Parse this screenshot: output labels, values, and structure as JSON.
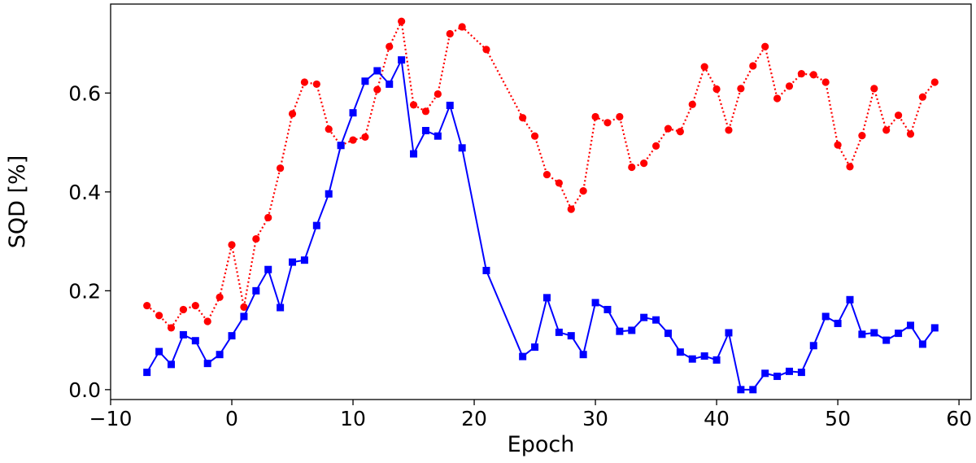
{
  "chart_data": {
    "type": "line",
    "xlabel": "Epoch",
    "ylabel": "SQD [%]",
    "xlim": [
      -10,
      61
    ],
    "ylim": [
      -0.02,
      0.78
    ],
    "xticks": [
      -10,
      0,
      10,
      20,
      30,
      40,
      50,
      60
    ],
    "xtick_labels": [
      "−10",
      "0",
      "10",
      "20",
      "30",
      "40",
      "50",
      "60"
    ],
    "yticks": [
      0.0,
      0.2,
      0.4,
      0.6
    ],
    "ytick_labels": [
      "0.0",
      "0.2",
      "0.4",
      "0.6"
    ],
    "grid": false,
    "series": [
      {
        "color": "#ff0000",
        "line_style": "dotted",
        "marker": "circle",
        "x": [
          -7,
          -6,
          -5,
          -4,
          -3,
          -2,
          -1,
          0,
          1,
          2,
          3,
          4,
          5,
          6,
          7,
          8,
          9,
          10,
          11,
          12,
          13,
          14,
          15,
          16,
          17,
          18,
          19,
          21,
          24,
          25,
          26,
          27,
          28,
          29,
          30,
          31,
          32,
          33,
          34,
          35,
          36,
          37,
          38,
          39,
          40,
          41,
          42,
          43,
          44,
          45,
          46,
          47,
          48,
          49,
          50,
          51,
          52,
          53,
          54,
          55,
          56,
          57,
          58
        ],
        "y": [
          0.17,
          0.15,
          0.125,
          0.162,
          0.17,
          0.138,
          0.187,
          0.293,
          0.167,
          0.305,
          0.348,
          0.448,
          0.558,
          0.622,
          0.618,
          0.527,
          0.494,
          0.505,
          0.511,
          0.607,
          0.694,
          0.745,
          0.576,
          0.563,
          0.598,
          0.72,
          0.734,
          0.688,
          0.55,
          0.513,
          0.435,
          0.418,
          0.365,
          0.402,
          0.552,
          0.54,
          0.552,
          0.45,
          0.458,
          0.493,
          0.528,
          0.522,
          0.577,
          0.653,
          0.608,
          0.525,
          0.609,
          0.655,
          0.694,
          0.589,
          0.614,
          0.639,
          0.637,
          0.622,
          0.495,
          0.451,
          0.514,
          0.609,
          0.525,
          0.555,
          0.517,
          0.592,
          0.622
        ]
      },
      {
        "color": "#0000ff",
        "line_style": "solid",
        "marker": "square",
        "x": [
          -7,
          -6,
          -5,
          -4,
          -3,
          -2,
          -1,
          0,
          1,
          2,
          3,
          4,
          5,
          6,
          7,
          8,
          9,
          10,
          11,
          12,
          13,
          14,
          15,
          16,
          17,
          18,
          19,
          21,
          24,
          25,
          26,
          27,
          28,
          29,
          30,
          31,
          32,
          33,
          34,
          35,
          36,
          37,
          38,
          39,
          40,
          41,
          42,
          43,
          44,
          45,
          46,
          47,
          48,
          49,
          50,
          51,
          52,
          53,
          54,
          55,
          56,
          57,
          58
        ],
        "y": [
          0.035,
          0.077,
          0.051,
          0.111,
          0.099,
          0.053,
          0.071,
          0.109,
          0.148,
          0.2,
          0.243,
          0.166,
          0.258,
          0.262,
          0.332,
          0.396,
          0.494,
          0.56,
          0.624,
          0.645,
          0.618,
          0.667,
          0.477,
          0.524,
          0.513,
          0.575,
          0.489,
          0.241,
          0.067,
          0.086,
          0.186,
          0.116,
          0.109,
          0.071,
          0.176,
          0.162,
          0.118,
          0.12,
          0.146,
          0.141,
          0.114,
          0.076,
          0.062,
          0.068,
          0.06,
          0.115,
          0.0,
          0.0,
          0.033,
          0.027,
          0.037,
          0.035,
          0.089,
          0.148,
          0.134,
          0.182,
          0.112,
          0.115,
          0.1,
          0.114,
          0.13,
          0.092,
          0.125
        ]
      }
    ]
  }
}
